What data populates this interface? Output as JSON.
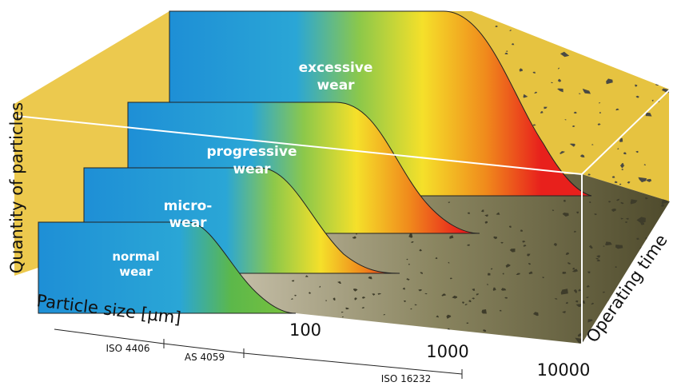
{
  "labels": {
    "y_axis": "Quantity of particles",
    "x_axis": "Particle size [µm]",
    "z_axis": "Operating time"
  },
  "x_ticks": [
    100,
    1000,
    10000
  ],
  "standards": [
    "ISO 4406",
    "AS 4059",
    "ISO 16232"
  ],
  "stages": [
    {
      "lines": [
        "excessive",
        "wear"
      ]
    },
    {
      "lines": [
        "progressive",
        "wear"
      ]
    },
    {
      "lines": [
        "micro-",
        "wear"
      ]
    },
    {
      "lines": [
        "normal",
        "wear"
      ]
    }
  ]
}
